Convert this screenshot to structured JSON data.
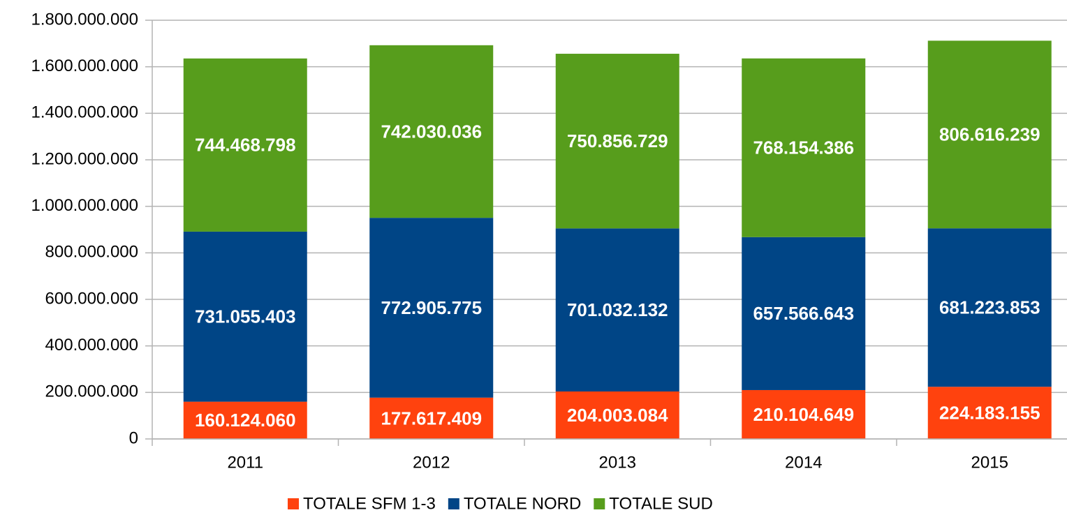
{
  "chart_data": {
    "type": "stacked_bar",
    "categories": [
      "2011",
      "2012",
      "2013",
      "2014",
      "2015"
    ],
    "series": [
      {
        "name": "TOTALE SFM 1-3",
        "color": "#ff420e",
        "values": [
          160124060,
          177617409,
          204003084,
          210104649,
          224183155
        ],
        "value_labels": [
          "160.124.060",
          "177.617.409",
          "204.003.084",
          "210.104.649",
          "224.183.155"
        ]
      },
      {
        "name": "TOTALE NORD",
        "color": "#004586",
        "values": [
          731055403,
          772905775,
          701032132,
          657566643,
          681223853
        ],
        "value_labels": [
          "731.055.403",
          "772.905.775",
          "701.032.132",
          "657.566.643",
          "681.223.853"
        ]
      },
      {
        "name": "TOTALE SUD",
        "color": "#579d1c",
        "values": [
          744468798,
          742030036,
          750856729,
          768154386,
          806616239
        ],
        "value_labels": [
          "744.468.798",
          "742.030.036",
          "750.856.729",
          "768.154.386",
          "806.616.239"
        ]
      }
    ],
    "ylim": [
      0,
      1800000000
    ],
    "yticks": [
      0,
      {
        "value": 200000000,
        "label": "200.000.000"
      },
      {
        "value": 400000000,
        "label": "400.000.000"
      },
      {
        "value": 600000000,
        "label": "600.000.000"
      },
      {
        "value": 800000000,
        "label": "800.000.000"
      },
      {
        "value": 1000000000,
        "label": "1.000.000.000"
      },
      {
        "value": 1200000000,
        "label": "1.200.000.000"
      },
      {
        "value": 1400000000,
        "label": "1.400.000.000"
      },
      {
        "value": 1600000000,
        "label": "1.600.000.000"
      },
      {
        "value": 1800000000,
        "label": "1.800.000.000"
      }
    ],
    "grid": true,
    "legend": "bottom"
  }
}
